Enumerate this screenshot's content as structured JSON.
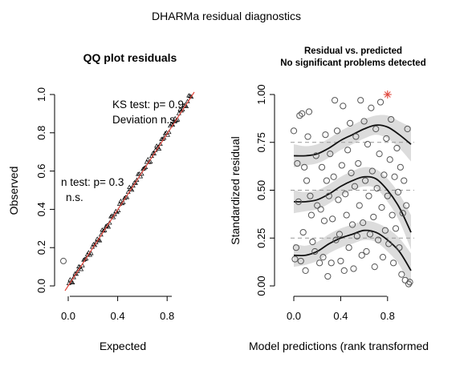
{
  "figure": {
    "title": "DHARMa residual diagnostics"
  },
  "chart_data": [
    {
      "type": "scatter",
      "title": "QQ plot residuals",
      "xlabel": "Expected",
      "ylabel": "Observed",
      "xlim": [
        0,
        1
      ],
      "ylim": [
        0,
        1
      ],
      "xticks": [
        "0.0",
        "0.4",
        "0.8"
      ],
      "yticks": [
        "0.0",
        "0.2",
        "0.4",
        "0.6",
        "0.8",
        "1.0"
      ],
      "reference_line": {
        "from": [
          0,
          0
        ],
        "to": [
          1,
          1
        ],
        "color": "#e0463c"
      },
      "point_count": 100,
      "outlier_point": {
        "x": 0.0,
        "y": 0.13
      },
      "annotations": {
        "ks_test": "KS test: p= 0.9",
        "ks_deviation": "Deviation n.s.",
        "disp_test": "n test: p= 0.3",
        "disp_deviation": "n.s."
      }
    },
    {
      "type": "scatter",
      "title": "Residual vs. predicted",
      "subtitle": "No significant problems detected",
      "xlabel": "Model predictions (rank transformed",
      "ylabel": "Standardized residual",
      "xlim": [
        0,
        1
      ],
      "ylim": [
        0,
        1
      ],
      "xticks": [
        "0.0",
        "0.4",
        "0.8"
      ],
      "yticks": [
        "0.00",
        "0.25",
        "0.50",
        "0.75",
        "1.00"
      ],
      "reference_lines": [
        0.25,
        0.5,
        0.75
      ],
      "points": [
        [
          0.0,
          0.81
        ],
        [
          0.01,
          0.14
        ],
        [
          0.02,
          0.2
        ],
        [
          0.03,
          0.64
        ],
        [
          0.04,
          0.44
        ],
        [
          0.05,
          0.89
        ],
        [
          0.06,
          0.13
        ],
        [
          0.07,
          0.9
        ],
        [
          0.08,
          0.28
        ],
        [
          0.09,
          0.62
        ],
        [
          0.1,
          0.08
        ],
        [
          0.11,
          0.55
        ],
        [
          0.12,
          0.78
        ],
        [
          0.13,
          0.91
        ],
        [
          0.14,
          0.47
        ],
        [
          0.15,
          0.37
        ],
        [
          0.16,
          0.23
        ],
        [
          0.18,
          0.18
        ],
        [
          0.19,
          0.68
        ],
        [
          0.2,
          0.42
        ],
        [
          0.22,
          0.12
        ],
        [
          0.23,
          0.4
        ],
        [
          0.24,
          0.62
        ],
        [
          0.25,
          0.15
        ],
        [
          0.26,
          0.34
        ],
        [
          0.27,
          0.79
        ],
        [
          0.28,
          0.55
        ],
        [
          0.29,
          0.05
        ],
        [
          0.3,
          0.47
        ],
        [
          0.31,
          0.69
        ],
        [
          0.32,
          0.12
        ],
        [
          0.33,
          0.35
        ],
        [
          0.34,
          0.57
        ],
        [
          0.35,
          0.97
        ],
        [
          0.36,
          0.24
        ],
        [
          0.37,
          0.81
        ],
        [
          0.38,
          0.45
        ],
        [
          0.39,
          0.27
        ],
        [
          0.4,
          0.13
        ],
        [
          0.41,
          0.63
        ],
        [
          0.42,
          0.94
        ],
        [
          0.43,
          0.08
        ],
        [
          0.44,
          0.48
        ],
        [
          0.45,
          0.37
        ],
        [
          0.46,
          0.71
        ],
        [
          0.47,
          0.2
        ],
        [
          0.48,
          0.85
        ],
        [
          0.49,
          0.59
        ],
        [
          0.5,
          0.32
        ],
        [
          0.51,
          0.09
        ],
        [
          0.52,
          0.52
        ],
        [
          0.53,
          0.78
        ],
        [
          0.54,
          0.26
        ],
        [
          0.55,
          0.64
        ],
        [
          0.56,
          0.42
        ],
        [
          0.57,
          0.97
        ],
        [
          0.58,
          0.16
        ],
        [
          0.59,
          0.33
        ],
        [
          0.6,
          0.86
        ],
        [
          0.61,
          0.55
        ],
        [
          0.62,
          0.18
        ],
        [
          0.63,
          0.74
        ],
        [
          0.64,
          0.47
        ],
        [
          0.65,
          0.27
        ],
        [
          0.66,
          0.93
        ],
        [
          0.67,
          0.6
        ],
        [
          0.68,
          0.36
        ],
        [
          0.69,
          0.1
        ],
        [
          0.7,
          0.82
        ],
        [
          0.71,
          0.51
        ],
        [
          0.72,
          0.24
        ],
        [
          0.73,
          0.69
        ],
        [
          0.74,
          0.96
        ],
        [
          0.75,
          0.41
        ],
        [
          0.76,
          0.15
        ],
        [
          0.77,
          0.58
        ],
        [
          0.78,
          0.29
        ],
        [
          0.79,
          0.77
        ],
        [
          0.8,
          0.47
        ],
        [
          0.81,
          0.22
        ],
        [
          0.82,
          0.66
        ],
        [
          0.83,
          0.87
        ],
        [
          0.84,
          0.37
        ],
        [
          0.85,
          0.12
        ],
        [
          0.86,
          0.57
        ],
        [
          0.87,
          0.3
        ],
        [
          0.88,
          0.72
        ],
        [
          0.89,
          0.49
        ],
        [
          0.9,
          0.2
        ],
        [
          0.91,
          0.62
        ],
        [
          0.92,
          0.06
        ],
        [
          0.93,
          0.38
        ],
        [
          0.94,
          0.55
        ],
        [
          0.95,
          0.03
        ],
        [
          0.96,
          0.42
        ],
        [
          0.97,
          0.82
        ],
        [
          0.98,
          0.01
        ],
        [
          0.99,
          0.02
        ]
      ],
      "outlier_points": [
        [
          0.8,
          1.0
        ]
      ],
      "outlier_color": "#e0463c",
      "quantile_fits": [
        {
          "quantile": 0.25,
          "x": [
            0.0,
            0.1,
            0.2,
            0.3,
            0.4,
            0.5,
            0.6,
            0.7,
            0.8,
            0.9,
            1.0
          ],
          "y": [
            0.16,
            0.16,
            0.18,
            0.22,
            0.25,
            0.27,
            0.29,
            0.28,
            0.24,
            0.18,
            0.08
          ]
        },
        {
          "quantile": 0.5,
          "x": [
            0.0,
            0.1,
            0.2,
            0.3,
            0.4,
            0.5,
            0.6,
            0.7,
            0.8,
            0.9,
            1.0
          ],
          "y": [
            0.44,
            0.44,
            0.45,
            0.48,
            0.52,
            0.55,
            0.57,
            0.56,
            0.5,
            0.41,
            0.28
          ]
        },
        {
          "quantile": 0.75,
          "x": [
            0.0,
            0.1,
            0.2,
            0.3,
            0.4,
            0.5,
            0.6,
            0.7,
            0.8,
            0.9,
            1.0
          ],
          "y": [
            0.68,
            0.68,
            0.69,
            0.72,
            0.76,
            0.79,
            0.82,
            0.84,
            0.83,
            0.79,
            0.74
          ]
        }
      ],
      "band_halfwidth": [
        0.06,
        0.05,
        0.05,
        0.05,
        0.05,
        0.05,
        0.05,
        0.05,
        0.06,
        0.07,
        0.09
      ],
      "colors": {
        "band": "#dcdcdc",
        "line": "#111111",
        "ref": "#999999",
        "points": "#555555"
      }
    }
  ]
}
